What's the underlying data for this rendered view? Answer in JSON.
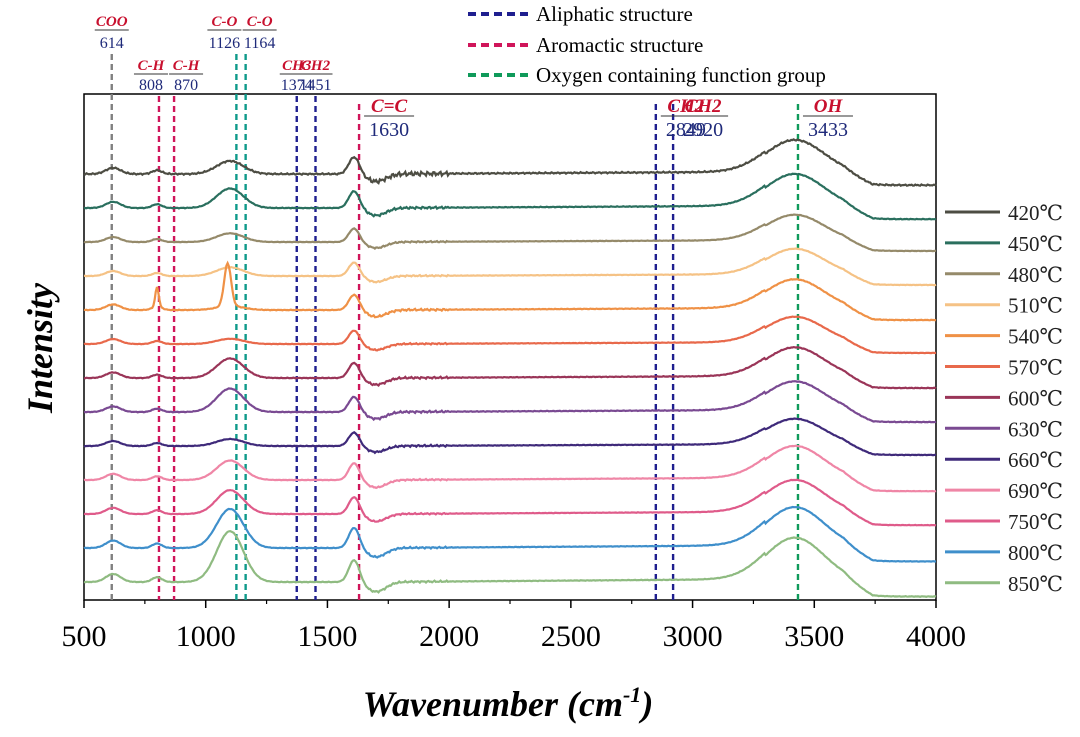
{
  "chart_data": {
    "type": "line",
    "title": "",
    "xlabel": "Wavenumber (cm",
    "xlabel_sup": "-1",
    "xlabel_close": ")",
    "ylabel": "Intensity",
    "xlim": [
      500,
      4000
    ],
    "x_ticks": [
      "500",
      "1000",
      "1500",
      "2000",
      "2500",
      "3000",
      "3500",
      "4000"
    ],
    "x_tick_values": [
      500,
      1000,
      1500,
      2000,
      2500,
      3000,
      3500,
      4000
    ],
    "y_ticks": [],
    "grid": false,
    "legend_position": "right",
    "series": [
      {
        "name": "420℃",
        "color": "#4d4d43",
        "offset": 12,
        "amp": 1.0,
        "jit": 2.0,
        "bumpA": 0.6,
        "peakNarrow": 0.0
      },
      {
        "name": "450℃",
        "color": "#2a6f5e",
        "offset": 11,
        "amp": 1.0,
        "jit": 1.0,
        "bumpA": 0.9,
        "peakNarrow": 0.0
      },
      {
        "name": "480℃",
        "color": "#958a6a",
        "offset": 10,
        "amp": 0.8,
        "jit": 0.8,
        "bumpA": 0.5,
        "peakNarrow": 0.0
      },
      {
        "name": "510℃",
        "color": "#f5c285",
        "offset": 9,
        "amp": 0.8,
        "jit": 0.8,
        "bumpA": 0.5,
        "peakNarrow": 0.0
      },
      {
        "name": "540℃",
        "color": "#ef9146",
        "offset": 8,
        "amp": 0.9,
        "jit": 1.0,
        "bumpA": 0.2,
        "peakNarrow": 1.4
      },
      {
        "name": "570℃",
        "color": "#e8694b",
        "offset": 7,
        "amp": 0.8,
        "jit": 0.8,
        "bumpA": 0.3,
        "peakNarrow": 0.0
      },
      {
        "name": "600℃",
        "color": "#9a3558",
        "offset": 6,
        "amp": 0.9,
        "jit": 1.0,
        "bumpA": 1.0,
        "peakNarrow": 0.0
      },
      {
        "name": "630℃",
        "color": "#7a4a92",
        "offset": 5,
        "amp": 0.9,
        "jit": 1.0,
        "bumpA": 1.2,
        "peakNarrow": 0.0
      },
      {
        "name": "660℃",
        "color": "#3f2a7a",
        "offset": 4,
        "amp": 0.8,
        "jit": 1.0,
        "bumpA": 0.4,
        "peakNarrow": 0.0
      },
      {
        "name": "690℃",
        "color": "#ef86a6",
        "offset": 3,
        "amp": 1.0,
        "jit": 0.6,
        "bumpA": 0.9,
        "peakNarrow": 0.0
      },
      {
        "name": "750℃",
        "color": "#df5b8a",
        "offset": 2,
        "amp": 1.0,
        "jit": 0.6,
        "bumpA": 1.1,
        "peakNarrow": 0.0
      },
      {
        "name": "800℃",
        "color": "#3f8fcb",
        "offset": 1,
        "amp": 1.2,
        "jit": 0.6,
        "bumpA": 1.5,
        "peakNarrow": 0.0
      },
      {
        "name": "850℃",
        "color": "#8fbb81",
        "offset": 0,
        "amp": 1.3,
        "jit": 0.6,
        "bumpA": 1.8,
        "peakNarrow": 0.0
      }
    ],
    "legend_top": [
      {
        "label": "Aliphatic structure",
        "color": "#1f1f8f"
      },
      {
        "label": "Aromactic structure",
        "color": "#d0155a"
      },
      {
        "label": "Oxygen containing function group",
        "color": "#0f9a5a"
      }
    ],
    "reference_lines": [
      {
        "x": 614,
        "group": "COO",
        "label": "614",
        "color": "#808080",
        "row": 1,
        "big": false
      },
      {
        "x": 808,
        "group": "C-H",
        "label": "808",
        "color": "#d0155a",
        "row": 2,
        "big": false
      },
      {
        "x": 870,
        "group": "C-H",
        "label": "870",
        "color": "#d0155a",
        "row": 2,
        "big": false
      },
      {
        "x": 1126,
        "group": "C-O",
        "label": "1126",
        "color": "#0f9a8a",
        "row": 1,
        "big": false
      },
      {
        "x": 1164,
        "group": "C-O",
        "label": "1164",
        "color": "#0f9a8a",
        "row": 1,
        "big": false
      },
      {
        "x": 1374,
        "group": "CH3",
        "label": "1374",
        "color": "#1f1f8f",
        "row": 2,
        "big": false
      },
      {
        "x": 1451,
        "group": "CH2",
        "label": "1451",
        "color": "#1f1f8f",
        "row": 2,
        "big": false
      },
      {
        "x": 1630,
        "group": "C=C",
        "label": "1630",
        "color": "#d0155a",
        "row": 3,
        "big": true
      },
      {
        "x": 2849,
        "group": "CH2",
        "label": "2849",
        "color": "#1f1f8f",
        "row": 3,
        "big": true
      },
      {
        "x": 2920,
        "group": "CH2",
        "label": "2920",
        "color": "#1f1f8f",
        "row": 3,
        "big": true
      },
      {
        "x": 3433,
        "group": "OH",
        "label": "3433",
        "color": "#0f9a5a",
        "row": 3,
        "big": true
      }
    ]
  }
}
